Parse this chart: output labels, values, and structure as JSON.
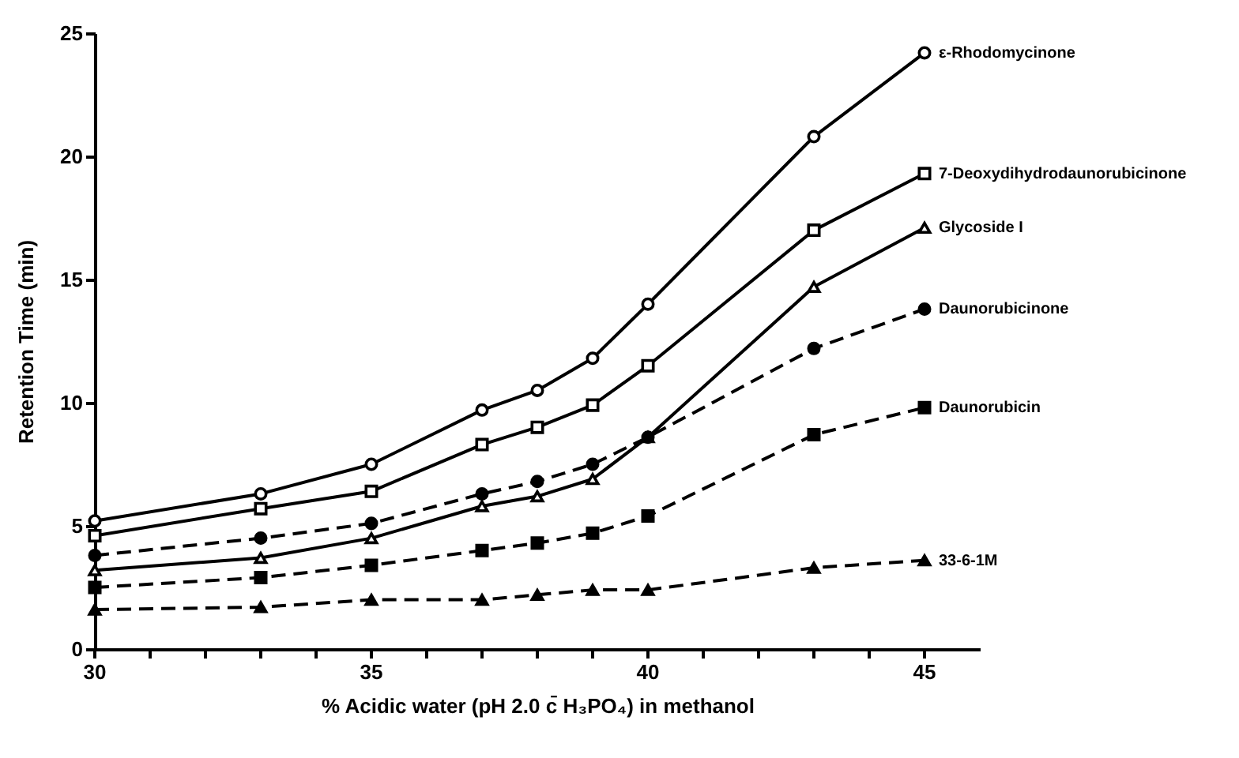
{
  "chart_data": {
    "type": "line",
    "xlabel": "% Acidic water (pH 2.0 c̄ H₃PO₄) in methanol",
    "ylabel": "Retention Time (min)",
    "x": [
      30,
      33,
      35,
      37,
      38,
      39,
      40,
      43,
      45
    ],
    "xlim": [
      30,
      46
    ],
    "xticks": [
      30,
      {
        "value": 31,
        "label": null
      },
      {
        "value": 32,
        "label": null
      },
      {
        "value": 33,
        "label": null
      },
      {
        "value": 34,
        "label": null
      },
      35,
      {
        "value": 36,
        "label": null
      },
      {
        "value": 37,
        "label": null
      },
      {
        "value": 38,
        "label": null
      },
      {
        "value": 39,
        "label": null
      },
      40,
      {
        "value": 41,
        "label": null
      },
      {
        "value": 42,
        "label": null
      },
      {
        "value": 43,
        "label": null
      },
      {
        "value": 44,
        "label": null
      },
      45
    ],
    "ylim": [
      0,
      25
    ],
    "yticks": [
      0,
      5,
      10,
      15,
      20,
      25
    ],
    "grid": false,
    "series": [
      {
        "name": "ε-Rhodomycinone",
        "color": "#000000",
        "marker": "circle",
        "line_style": "solid",
        "values": [
          5.2,
          6.3,
          7.5,
          9.7,
          10.5,
          11.8,
          14.0,
          20.8,
          24.2
        ]
      },
      {
        "name": "7-Deoxydihydrodaunorubicinone",
        "color": "#000000",
        "marker": "square",
        "line_style": "solid",
        "values": [
          4.6,
          5.7,
          6.4,
          8.3,
          9.0,
          9.9,
          11.5,
          17.0,
          19.3
        ]
      },
      {
        "name": "Glycoside I",
        "color": "#000000",
        "marker": "triangle",
        "line_style": "solid",
        "values": [
          3.2,
          3.7,
          4.5,
          5.8,
          6.2,
          6.9,
          8.6,
          14.7,
          17.1
        ]
      },
      {
        "name": "Daunorubicinone",
        "color": "#000000",
        "marker": "circle",
        "line_style": "dashed",
        "values": [
          3.8,
          4.5,
          5.1,
          6.3,
          6.8,
          7.5,
          8.6,
          12.2,
          13.8
        ]
      },
      {
        "name": "Daunorubicin",
        "color": "#000000",
        "marker": "square",
        "line_style": "dashed",
        "values": [
          2.5,
          2.9,
          3.4,
          4.0,
          4.3,
          4.7,
          5.4,
          8.7,
          9.8
        ]
      },
      {
        "name": "33-6-1M",
        "color": "#000000",
        "marker": "triangle",
        "line_style": "dashed",
        "values": [
          1.6,
          1.7,
          2.0,
          2.0,
          2.2,
          2.4,
          2.4,
          3.3,
          3.6
        ]
      }
    ]
  }
}
